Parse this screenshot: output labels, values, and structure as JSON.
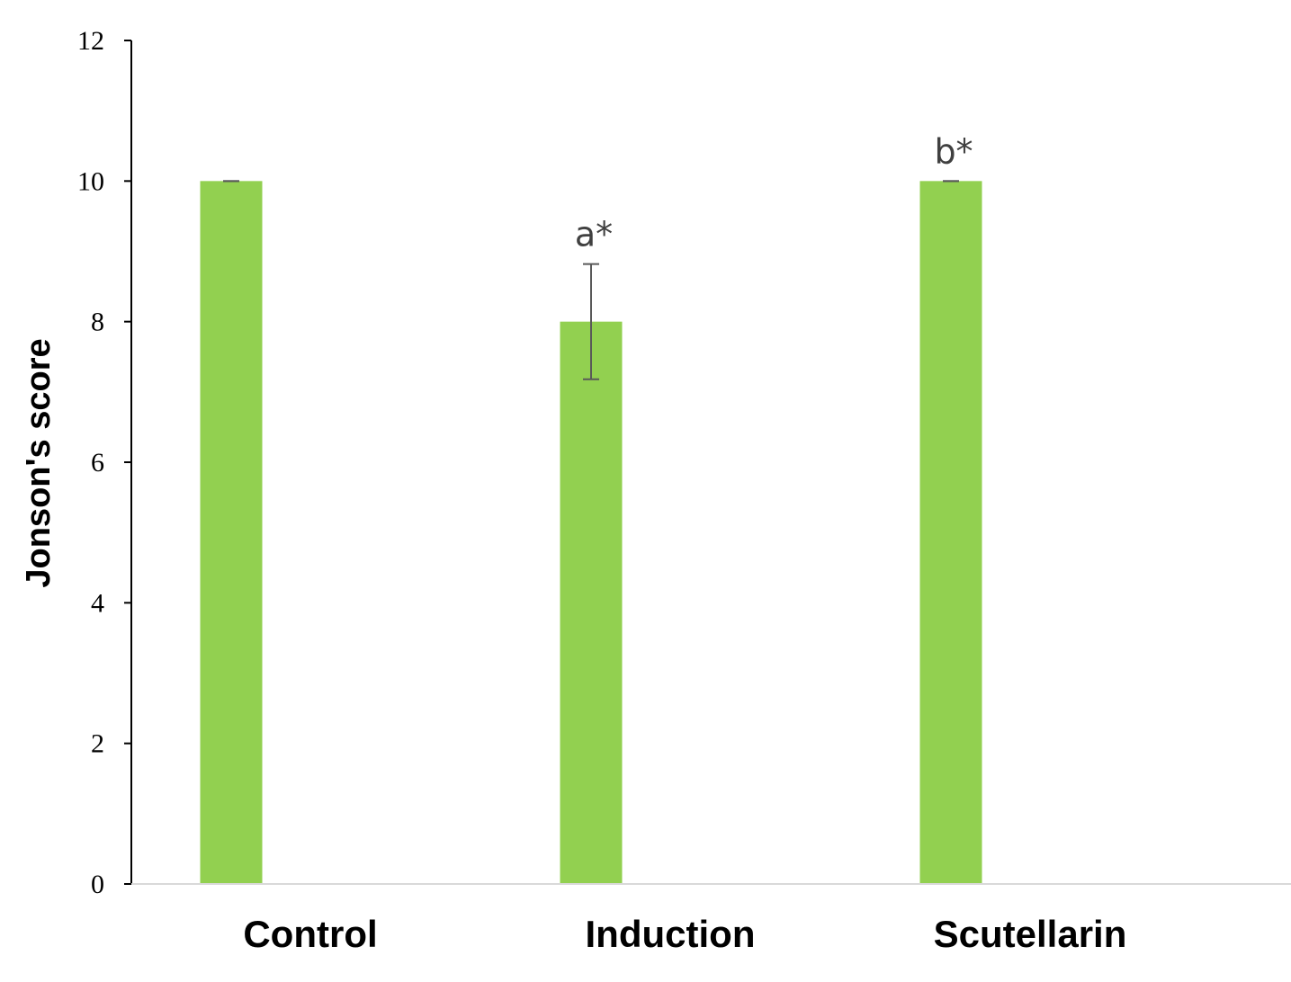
{
  "chart_data": {
    "type": "bar",
    "title": "",
    "xlabel": "",
    "ylabel": "Jonson's score",
    "ylim": [
      0,
      12
    ],
    "yticks": [
      0,
      2,
      4,
      6,
      8,
      10,
      12
    ],
    "grid": false,
    "legend": "none",
    "categories": [
      "Control",
      "Induction",
      "Scutellarin"
    ],
    "series": [
      {
        "values": [
          10,
          8,
          10
        ],
        "error": [
          0,
          0.82,
          0
        ],
        "color": "#92d050"
      }
    ],
    "annotations": [
      "",
      "a*",
      "b*"
    ]
  }
}
